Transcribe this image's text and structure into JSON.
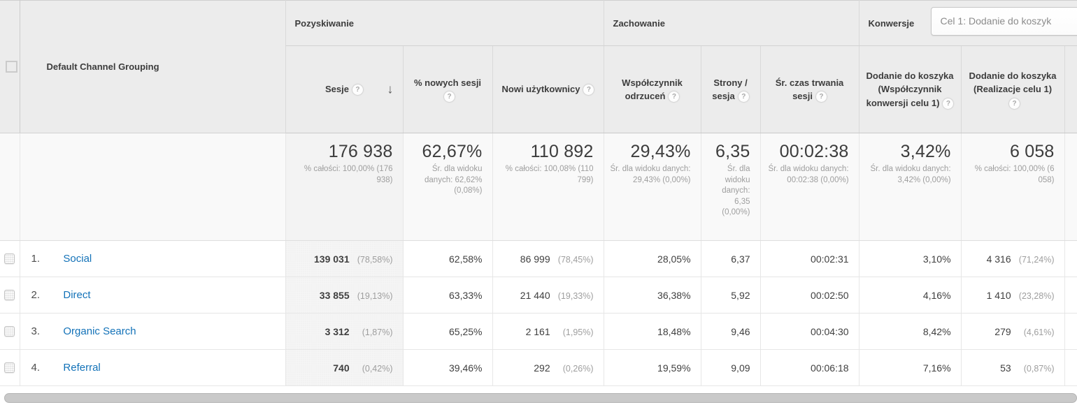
{
  "header": {
    "dimension": "Default Channel Grouping",
    "groups": [
      {
        "label": "Pozyskiwanie"
      },
      {
        "label": "Zachowanie"
      },
      {
        "label": "Konwersje"
      }
    ],
    "goal_selector": {
      "value": "Cel 1: Dodanie do koszyk"
    },
    "columns": [
      {
        "label": "Sesje",
        "sorted": "desc"
      },
      {
        "label": "% nowych sesji"
      },
      {
        "label": "Nowi użytkownicy"
      },
      {
        "label": "Współczynnik odrzuceń"
      },
      {
        "label": "Strony / sesja"
      },
      {
        "label": "Śr. czas trwania sesji"
      },
      {
        "label": "Dodanie do koszyka (Współczynnik konwersji celu 1)"
      },
      {
        "label": "Dodanie do koszyka (Realizacje celu 1)"
      }
    ]
  },
  "summary": {
    "sessions": {
      "value": "176 938",
      "note": "% całości: 100,00% (176 938)"
    },
    "new_sessions_pct": {
      "value": "62,67%",
      "note": "Śr. dla widoku danych: 62,62% (0,08%)"
    },
    "new_users": {
      "value": "110 892",
      "note": "% całości: 100,08% (110 799)"
    },
    "bounce_rate": {
      "value": "29,43%",
      "note": "Śr. dla widoku danych: 29,43% (0,00%)"
    },
    "pages_per_session": {
      "value": "6,35",
      "note": "Śr. dla widoku danych: 6,35 (0,00%)"
    },
    "avg_session_duration": {
      "value": "00:02:38",
      "note": "Śr. dla widoku danych: 00:02:38 (0,00%)"
    },
    "goal_conversion_rate": {
      "value": "3,42%",
      "note": "Śr. dla widoku danych: 3,42% (0,00%)"
    },
    "goal_completions": {
      "value": "6 058",
      "note": "% całości: 100,00% (6 058)"
    }
  },
  "rows": [
    {
      "num": "1.",
      "channel": "Social",
      "sessions": "139 031",
      "sessions_pct": "(78,58%)",
      "new_sessions_pct": "62,58%",
      "new_users": "86 999",
      "new_users_pct": "(78,45%)",
      "bounce_rate": "28,05%",
      "pages_per_session": "6,37",
      "avg_session_duration": "00:02:31",
      "goal_conversion_rate": "3,10%",
      "goal_completions": "4 316",
      "goal_completions_pct": "(71,24%)"
    },
    {
      "num": "2.",
      "channel": "Direct",
      "sessions": "33 855",
      "sessions_pct": "(19,13%)",
      "new_sessions_pct": "63,33%",
      "new_users": "21 440",
      "new_users_pct": "(19,33%)",
      "bounce_rate": "36,38%",
      "pages_per_session": "5,92",
      "avg_session_duration": "00:02:50",
      "goal_conversion_rate": "4,16%",
      "goal_completions": "1 410",
      "goal_completions_pct": "(23,28%)"
    },
    {
      "num": "3.",
      "channel": "Organic Search",
      "sessions": "3 312",
      "sessions_pct": "(1,87%)",
      "new_sessions_pct": "65,25%",
      "new_users": "2 161",
      "new_users_pct": "(1,95%)",
      "bounce_rate": "18,48%",
      "pages_per_session": "9,46",
      "avg_session_duration": "00:04:30",
      "goal_conversion_rate": "8,42%",
      "goal_completions": "279",
      "goal_completions_pct": "(4,61%)"
    },
    {
      "num": "4.",
      "channel": "Referral",
      "sessions": "740",
      "sessions_pct": "(0,42%)",
      "new_sessions_pct": "39,46%",
      "new_users": "292",
      "new_users_pct": "(0,26%)",
      "bounce_rate": "19,59%",
      "pages_per_session": "9,09",
      "avg_session_duration": "00:06:18",
      "goal_conversion_rate": "7,16%",
      "goal_completions": "53",
      "goal_completions_pct": "(0,87%)"
    }
  ],
  "colors": {
    "link": "#1372b8",
    "header_bg": "#ececec",
    "sorted_col_bg": "#f5f5f5",
    "summary_bg": "#f9f9f9"
  }
}
